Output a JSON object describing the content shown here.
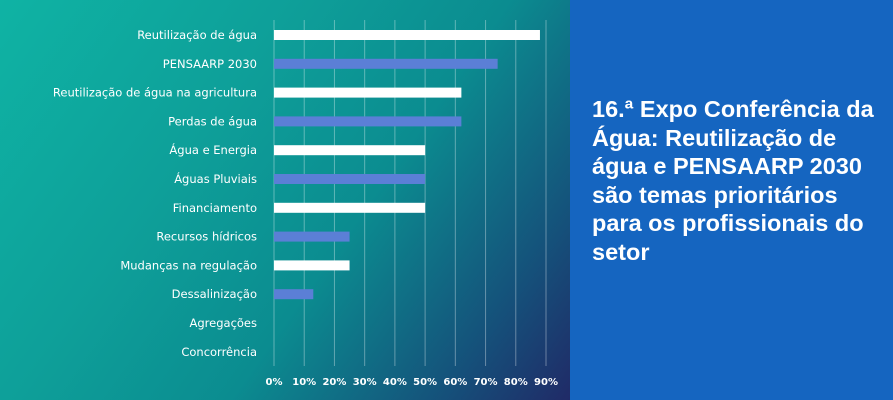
{
  "chart_data": {
    "type": "bar",
    "orientation": "horizontal",
    "categories": [
      "Reutilização de água",
      "PENSAARP 2030",
      "Reutilização de água na agricultura",
      "Perdas de água",
      "Água e Energia",
      "Águas Pluviais",
      "Financiamento",
      "Recursos hídricos",
      "Mudanças na regulação",
      "Dessalinização",
      "Agregações",
      "Concorrência"
    ],
    "values": [
      88,
      74,
      62,
      62,
      50,
      50,
      50,
      25,
      25,
      13,
      0,
      0
    ],
    "xlim": [
      0,
      90
    ],
    "xticks": [
      "0%",
      "10%",
      "20%",
      "30%",
      "40%",
      "50%",
      "60%",
      "70%",
      "80%",
      "90%"
    ],
    "grid": "vertical",
    "bar_colors": [
      "#ffffff",
      "#5b7fd6"
    ]
  },
  "headline": "16.ª Expo Conferência da Água: Reutilização de água e PENSAARP 2030 são temas prioritários para os profissionais do setor",
  "colors": {
    "side_panel": "#1565c0",
    "headline_text": "#ffffff",
    "gradient_start": "#0fb3a4",
    "gradient_end": "#202a67"
  }
}
